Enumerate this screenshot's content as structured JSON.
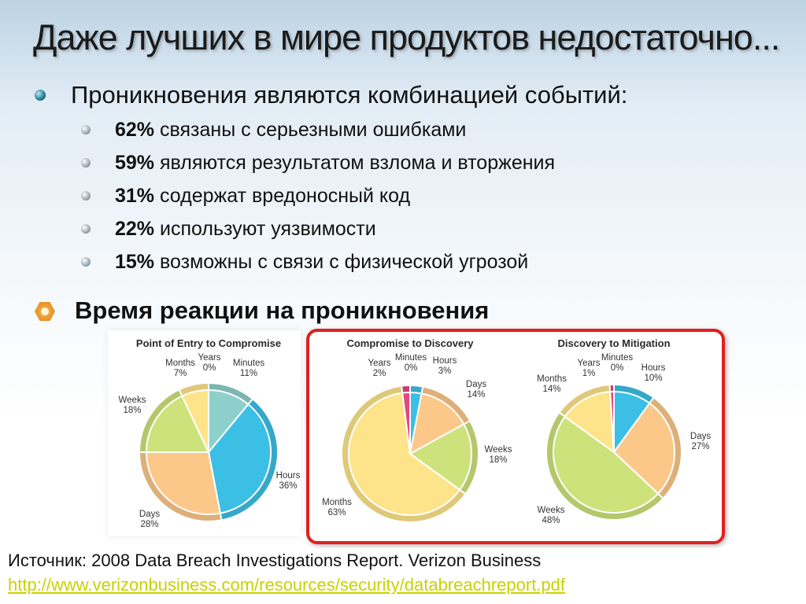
{
  "slide": {
    "title": "Даже лучших в мире продуктов недостаточно...",
    "bullet_main": "Проникновения являются комбинацией событий:",
    "sub_bullets": [
      {
        "pct": "62%",
        "text": "связаны с серьезными ошибками"
      },
      {
        "pct": "59%",
        "text": "являются результатом взлома и вторжения"
      },
      {
        "pct": "31%",
        "text": "содержат вредоносный код"
      },
      {
        "pct": "22%",
        "text": "используют уязвимости"
      },
      {
        "pct": "15%",
        "text": "возможны с связи с физической угрозой"
      }
    ],
    "bullet_response": "Время реакции на проникновения",
    "source_label": "Источник:  2008 Data Breach Investigations Report. Verizon Business",
    "source_url": "http://www.verizonbusiness.com/resources/security/databreachreport.pdf"
  },
  "colors": {
    "Minutes": "#8dcfca",
    "Hours": "#3cbfe4",
    "Days": "#fbc88a",
    "Weeks": "#cde27a",
    "Months": "#fde48a",
    "Years": "#e24683",
    "accent_red": "#e02020",
    "link": "#c8d200"
  },
  "chart_data": [
    {
      "type": "pie",
      "title": "Point of Entry to Compromise",
      "slices": [
        {
          "label": "Minutes",
          "value": 11,
          "display": "11%"
        },
        {
          "label": "Hours",
          "value": 36,
          "display": "36%"
        },
        {
          "label": "Days",
          "value": 28,
          "display": "28%"
        },
        {
          "label": "Weeks",
          "value": 18,
          "display": "18%"
        },
        {
          "label": "Months",
          "value": 7,
          "display": "7%"
        },
        {
          "label": "Years",
          "value": 0,
          "display": "0%"
        }
      ]
    },
    {
      "type": "pie",
      "title": "Compromise to Discovery",
      "slices": [
        {
          "label": "Minutes",
          "value": 0,
          "display": "0%"
        },
        {
          "label": "Hours",
          "value": 3,
          "display": "3%"
        },
        {
          "label": "Days",
          "value": 14,
          "display": "14%"
        },
        {
          "label": "Weeks",
          "value": 18,
          "display": "18%"
        },
        {
          "label": "Months",
          "value": 63,
          "display": "63%"
        },
        {
          "label": "Years",
          "value": 2,
          "display": "2%"
        }
      ]
    },
    {
      "type": "pie",
      "title": "Discovery to Mitigation",
      "slices": [
        {
          "label": "Minutes",
          "value": 0,
          "display": "0%"
        },
        {
          "label": "Hours",
          "value": 10,
          "display": "10%"
        },
        {
          "label": "Days",
          "value": 27,
          "display": "27%"
        },
        {
          "label": "Weeks",
          "value": 48,
          "display": "48%"
        },
        {
          "label": "Months",
          "value": 14,
          "display": "14%"
        },
        {
          "label": "Years",
          "value": 1,
          "display": "1%"
        }
      ]
    }
  ]
}
